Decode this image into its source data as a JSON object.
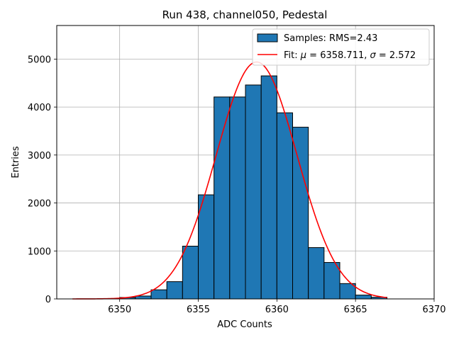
{
  "chart_data": {
    "type": "bar",
    "title": "Run 438, channel050, Pedestal",
    "xlabel": "ADC Counts",
    "ylabel": "Entries",
    "xlim": [
      6346,
      6370
    ],
    "ylim": [
      0,
      5700
    ],
    "xticks": [
      6350,
      6355,
      6360,
      6365,
      6370
    ],
    "yticks": [
      0,
      1000,
      2000,
      3000,
      4000,
      5000
    ],
    "grid": true,
    "legend_position": "top-right",
    "histogram": {
      "name": "Samples: RMS=2.43",
      "color": "#1f77b4",
      "edgecolor": "#000000",
      "bins": [
        {
          "x0": 6350,
          "x1": 6351,
          "value": 30
        },
        {
          "x0": 6351,
          "x1": 6352,
          "value": 60
        },
        {
          "x0": 6352,
          "x1": 6353,
          "value": 190
        },
        {
          "x0": 6353,
          "x1": 6354,
          "value": 360
        },
        {
          "x0": 6354,
          "x1": 6355,
          "value": 1100
        },
        {
          "x0": 6355,
          "x1": 6356,
          "value": 2170
        },
        {
          "x0": 6356,
          "x1": 6357,
          "value": 4210
        },
        {
          "x0": 6357,
          "x1": 6358,
          "value": 4210
        },
        {
          "x0": 6358,
          "x1": 6359,
          "value": 4460
        },
        {
          "x0": 6359,
          "x1": 6360,
          "value": 4650
        },
        {
          "x0": 6360,
          "x1": 6361,
          "value": 3880
        },
        {
          "x0": 6361,
          "x1": 6362,
          "value": 3580
        },
        {
          "x0": 6362,
          "x1": 6363,
          "value": 1070
        },
        {
          "x0": 6363,
          "x1": 6364,
          "value": 760
        },
        {
          "x0": 6364,
          "x1": 6365,
          "value": 320
        },
        {
          "x0": 6365,
          "x1": 6366,
          "value": 80
        },
        {
          "x0": 6366,
          "x1": 6367,
          "value": 35
        }
      ]
    },
    "fit": {
      "legend_prefix": "Fit: ",
      "legend_mu": "μ",
      "legend_eq1": " = 6358.711, ",
      "legend_sigma": "σ",
      "legend_eq2": " = 2.572",
      "color": "#ff0000",
      "mu": 6358.711,
      "sigma": 2.572,
      "amplitude": 4940,
      "x_range": [
        6347,
        6367
      ]
    }
  }
}
